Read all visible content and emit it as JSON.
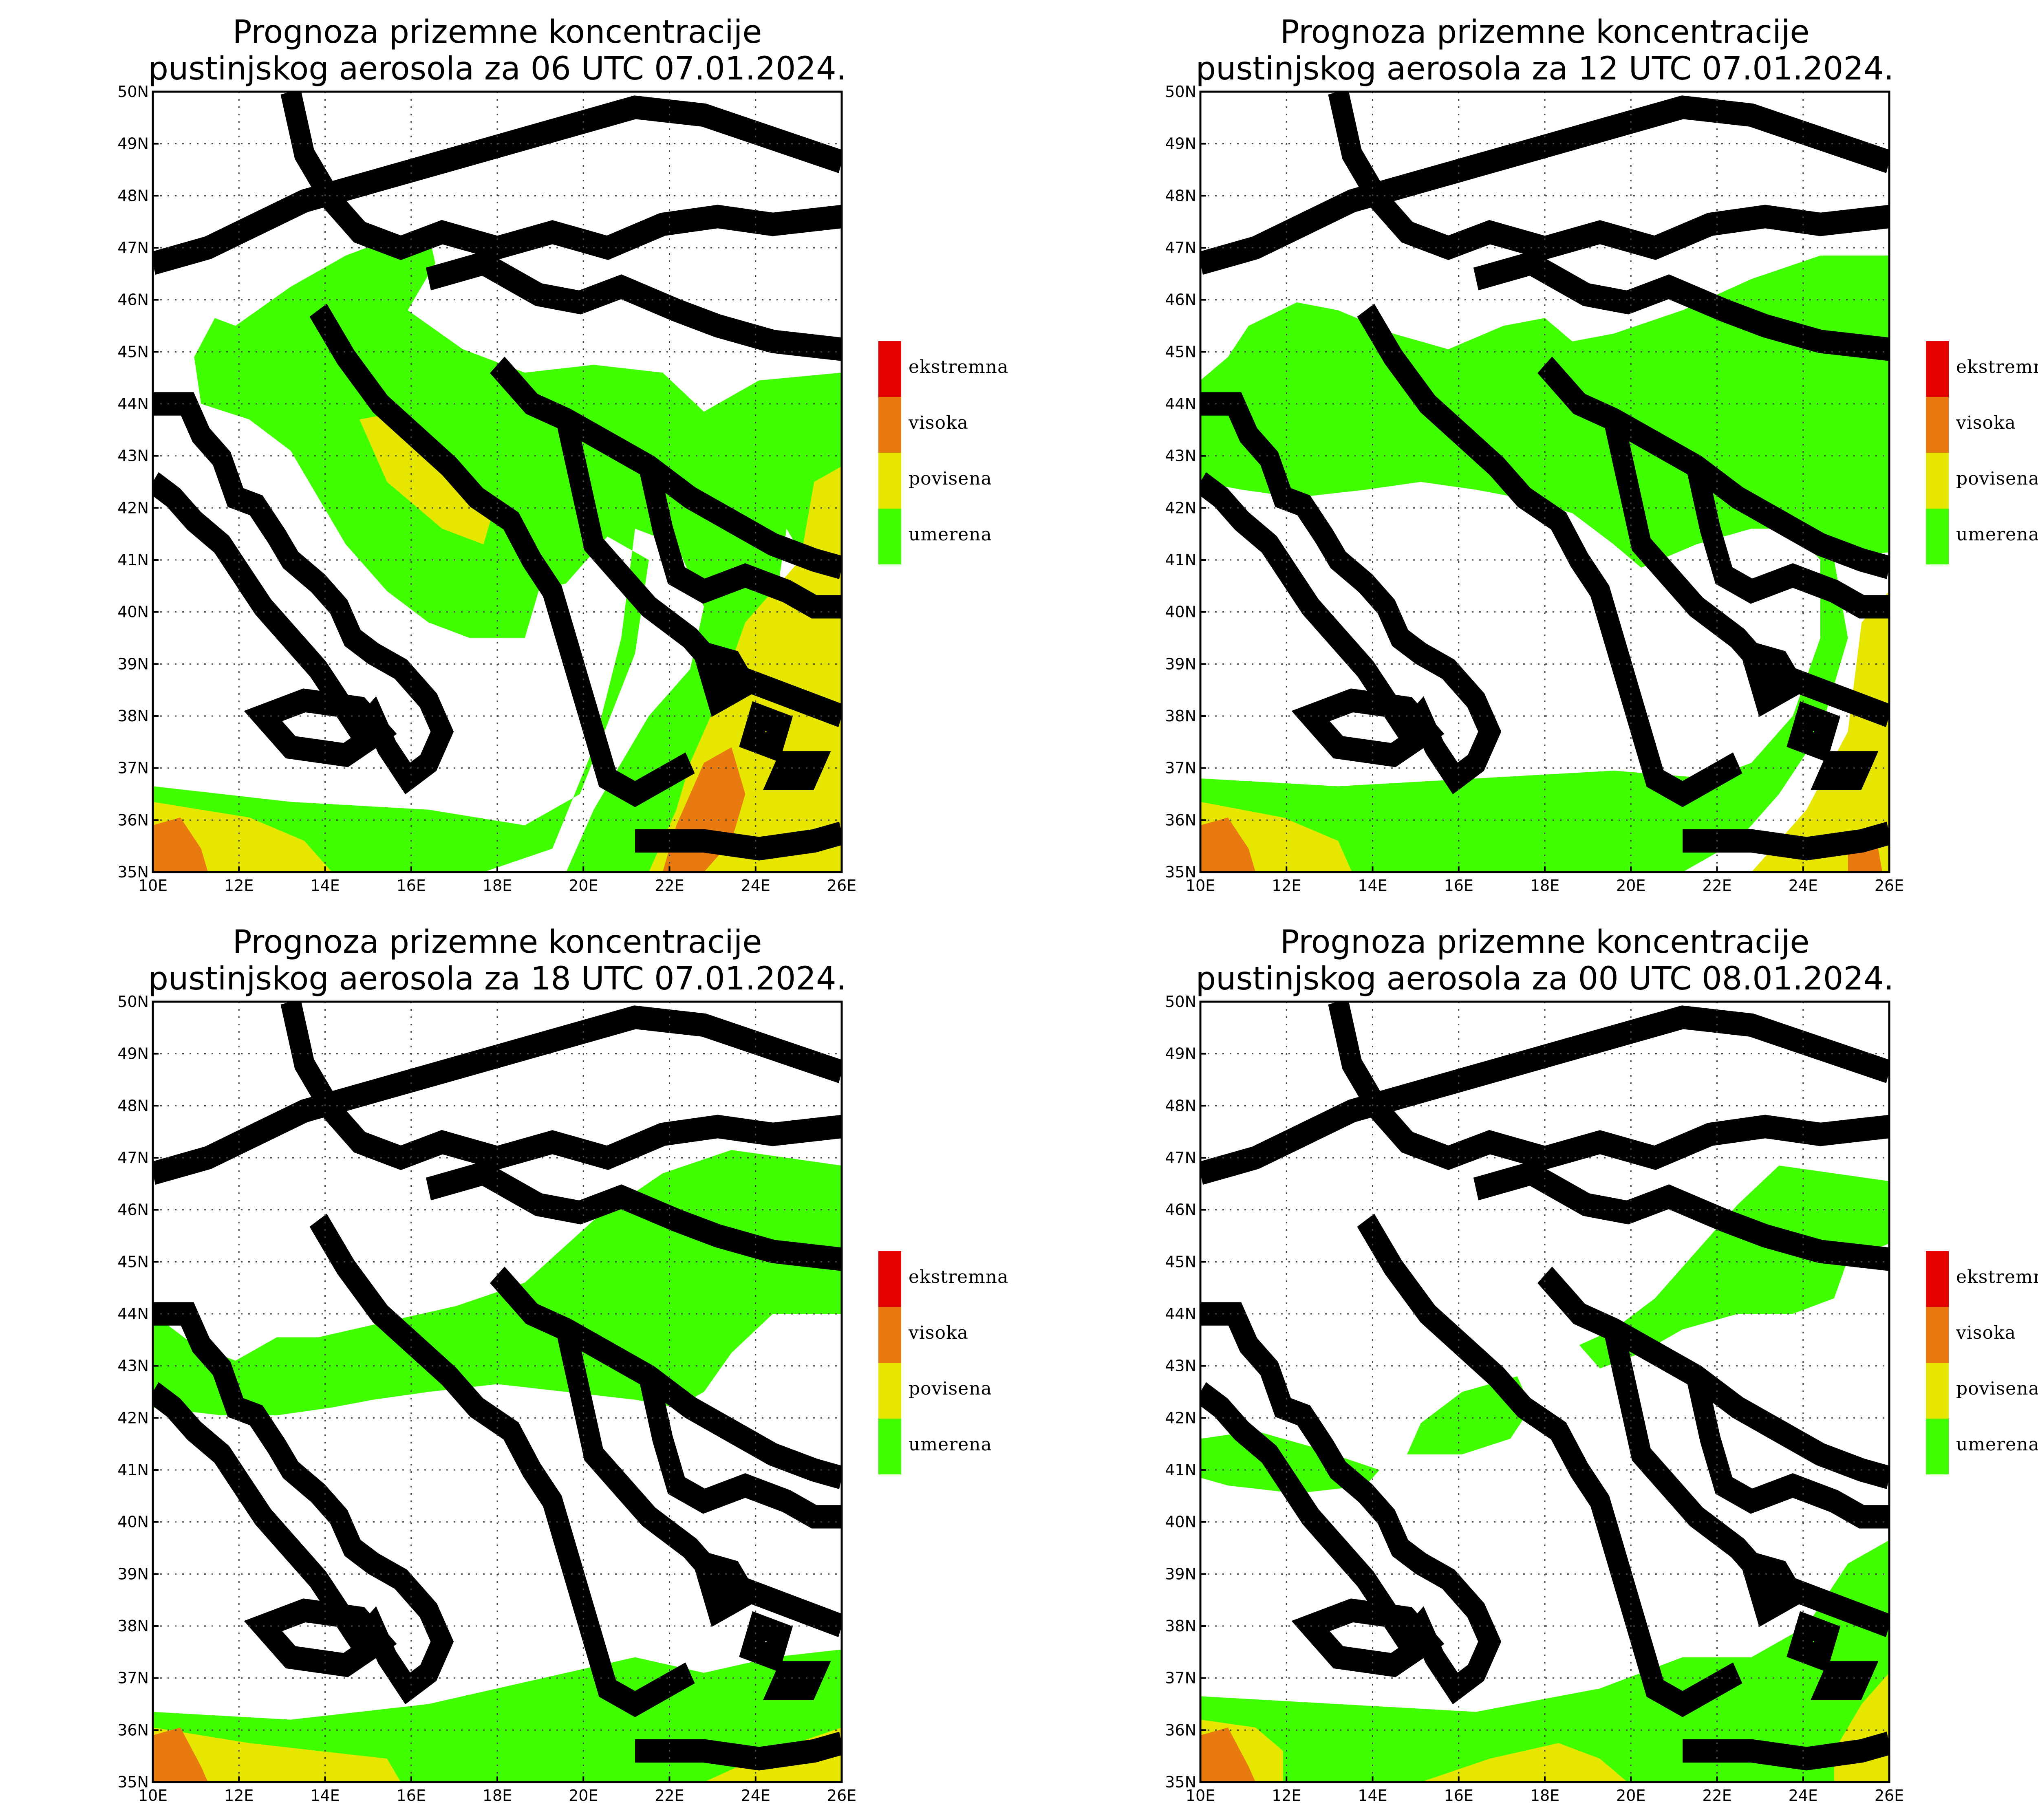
{
  "colors": {
    "ekstremna": "#e60000",
    "visoka": "#e87a10",
    "povisena": "#e6e600",
    "umerena": "#40ff00"
  },
  "axes": {
    "x_ticks": [
      "10E",
      "12E",
      "14E",
      "16E",
      "18E",
      "20E",
      "22E",
      "24E",
      "26E"
    ],
    "y_ticks": [
      "35N",
      "36N",
      "37N",
      "38N",
      "39N",
      "40N",
      "41N",
      "42N",
      "43N",
      "44N",
      "45N",
      "46N",
      "47N",
      "48N",
      "49N",
      "50N"
    ]
  },
  "legend": {
    "labels": [
      "ekstremna",
      "visoka",
      "povisena",
      "umerena"
    ]
  },
  "panels": [
    {
      "title_line1": "Prognoza prizemne koncentracije",
      "title_line2": "pustinjskog aerosola za 06 UTC 07.01.2024."
    },
    {
      "title_line1": "Prognoza prizemne koncentracije",
      "title_line2": "pustinjskog aerosola za 12 UTC 07.01.2024."
    },
    {
      "title_line1": "Prognoza prizemne koncentracije",
      "title_line2": "pustinjskog aerosola za 18 UTC 07.01.2024."
    },
    {
      "title_line1": "Prognoza prizemne koncentracije",
      "title_line2": "pustinjskog aerosola za 00 UTC 08.01.2024."
    }
  ]
}
